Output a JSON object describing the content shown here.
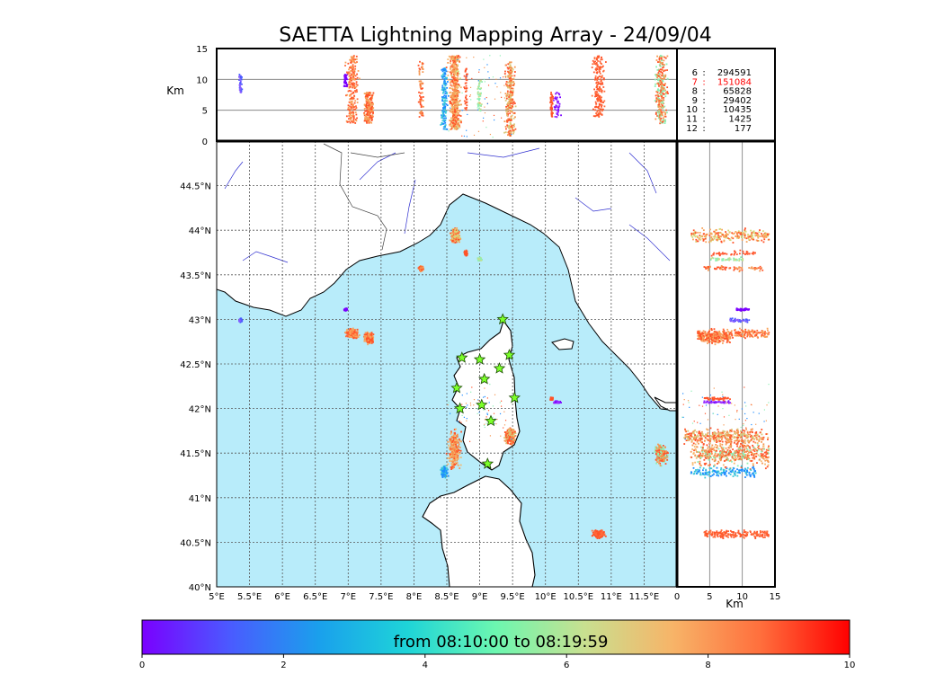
{
  "title": "SAETTA Lightning Mapping Array - 24/09/04",
  "chart_data": {
    "type": "scatter",
    "title": "SAETTA Lightning Mapping Array - 24/09/04",
    "map": {
      "lon_range": [
        5,
        12
      ],
      "lat_range": [
        40,
        45
      ],
      "lon_ticks": [
        "5°E",
        "5.5°E",
        "6°E",
        "6.5°E",
        "7°E",
        "7.5°E",
        "8°E",
        "8.5°E",
        "9°E",
        "9.5°E",
        "10°E",
        "10.5°E",
        "11°E",
        "11.5°E"
      ],
      "lat_ticks": [
        "40°N",
        "40.5°N",
        "41°N",
        "41.5°N",
        "42°N",
        "42.5°N",
        "43°N",
        "43.5°N",
        "44°N",
        "44.5°N"
      ],
      "grid": true,
      "sea_color": "#b8ecfa",
      "land_color": "#ffffff"
    },
    "altitude_axis": {
      "label": "Km",
      "range": [
        0,
        15
      ],
      "ticks": [
        "0",
        "5",
        "10",
        "15"
      ]
    },
    "counts": [
      {
        "label": "6",
        "value": "294591",
        "color": "#000000"
      },
      {
        "label": "7",
        "value": "151084",
        "color": "#ff0000"
      },
      {
        "label": "8",
        "value": "65828",
        "color": "#000000"
      },
      {
        "label": "9",
        "value": "29402",
        "color": "#000000"
      },
      {
        "label": "10",
        "value": "10435",
        "color": "#000000"
      },
      {
        "label": "11",
        "value": "1425",
        "color": "#000000"
      },
      {
        "label": "12",
        "value": "177",
        "color": "#000000"
      }
    ],
    "stations": [
      [
        9.35,
        43.0
      ],
      [
        8.73,
        42.57
      ],
      [
        9.0,
        42.55
      ],
      [
        9.45,
        42.6
      ],
      [
        9.3,
        42.45
      ],
      [
        9.07,
        42.33
      ],
      [
        8.65,
        42.23
      ],
      [
        9.53,
        42.12
      ],
      [
        9.03,
        42.04
      ],
      [
        8.7,
        42.0
      ],
      [
        9.17,
        41.86
      ],
      [
        9.12,
        41.38
      ]
    ],
    "clusters": [
      {
        "lon": 7.05,
        "lat": 42.85,
        "lon_spread": 0.12,
        "lat_spread": 0.07,
        "alt_min": 3,
        "alt_max": 14,
        "colors": [
          "#ff5328",
          "#ff6b3a",
          "#f9a35a"
        ]
      },
      {
        "lon": 7.3,
        "lat": 42.8,
        "lon_spread": 0.1,
        "lat_spread": 0.08,
        "alt_min": 3,
        "alt_max": 8,
        "colors": [
          "#f7a25c",
          "#ff5328"
        ]
      },
      {
        "lon": 6.95,
        "lat": 43.12,
        "lon_spread": 0.03,
        "lat_spread": 0.02,
        "alt_min": 9,
        "alt_max": 11,
        "colors": [
          "#7a00ff"
        ]
      },
      {
        "lon": 5.35,
        "lat": 43.0,
        "lon_spread": 0.03,
        "lat_spread": 0.03,
        "alt_min": 8,
        "alt_max": 11,
        "colors": [
          "#4a5bff",
          "#8a5cff"
        ]
      },
      {
        "lon": 8.1,
        "lat": 43.58,
        "lon_spread": 0.06,
        "lat_spread": 0.04,
        "alt_min": 4,
        "alt_max": 13,
        "colors": [
          "#ff5328",
          "#f59650"
        ]
      },
      {
        "lon": 8.62,
        "lat": 43.95,
        "lon_spread": 0.09,
        "lat_spread": 0.1,
        "alt_min": 2,
        "alt_max": 14,
        "colors": [
          "#f9a35a",
          "#ff5328",
          "#d6d97a"
        ]
      },
      {
        "lon": 8.78,
        "lat": 43.75,
        "lon_spread": 0.03,
        "lat_spread": 0.05,
        "alt_min": 5,
        "alt_max": 12,
        "colors": [
          "#ff5328"
        ]
      },
      {
        "lon": 8.98,
        "lat": 43.68,
        "lon_spread": 0.06,
        "lat_spread": 0.03,
        "alt_min": 5,
        "alt_max": 10,
        "colors": [
          "#c8dc8c",
          "#8df0b4"
        ]
      },
      {
        "lon": 8.6,
        "lat": 41.55,
        "lon_spread": 0.13,
        "lat_spread": 0.3,
        "alt_min": 2,
        "alt_max": 14,
        "colors": [
          "#ff5328",
          "#f59650",
          "#f6b76c"
        ]
      },
      {
        "lon": 8.45,
        "lat": 41.3,
        "lon_spread": 0.07,
        "lat_spread": 0.08,
        "alt_min": 2,
        "alt_max": 12,
        "colors": [
          "#1e8cff",
          "#3bc8d8"
        ]
      },
      {
        "lon": 9.45,
        "lat": 41.7,
        "lon_spread": 0.1,
        "lat_spread": 0.12,
        "alt_min": 1,
        "alt_max": 13,
        "colors": [
          "#f59650",
          "#ff5328",
          "#d8c87a"
        ]
      },
      {
        "lon": 10.17,
        "lat": 42.08,
        "lon_spread": 0.08,
        "lat_spread": 0.02,
        "alt_min": 4,
        "alt_max": 8,
        "colors": [
          "#7a00ff",
          "#9a30ff"
        ]
      },
      {
        "lon": 10.08,
        "lat": 42.12,
        "lon_spread": 0.03,
        "lat_spread": 0.02,
        "alt_min": 4,
        "alt_max": 8,
        "colors": [
          "#ff5328"
        ]
      },
      {
        "lon": 10.8,
        "lat": 40.6,
        "lon_spread": 0.12,
        "lat_spread": 0.06,
        "alt_min": 4,
        "alt_max": 14,
        "colors": [
          "#ff5328",
          "#ff6b3a"
        ]
      },
      {
        "lon": 11.75,
        "lat": 41.5,
        "lon_spread": 0.12,
        "lat_spread": 0.15,
        "alt_min": 3,
        "alt_max": 14,
        "colors": [
          "#ff5328",
          "#f59650",
          "#8df0b4"
        ]
      },
      {
        "lon": 9.0,
        "lat": 41.95,
        "lon_spread": 0.7,
        "lat_spread": 0.4,
        "alt_min": 0.5,
        "alt_max": 14,
        "colors": [
          "#ff5328",
          "#f59650",
          "#8df0b4",
          "#1e8cff"
        ]
      }
    ],
    "colorbar": {
      "label": "from 08:10:00 to 08:19:59",
      "range": [
        0,
        10
      ],
      "ticks": [
        "0",
        "2",
        "4",
        "6",
        "8",
        "10"
      ],
      "colors": [
        "#7a00ff",
        "#4a5bff",
        "#1aa0ec",
        "#1ed4d8",
        "#6cf7b0",
        "#c8e090",
        "#f7b468",
        "#ff6e3c",
        "#ff0000"
      ]
    }
  }
}
